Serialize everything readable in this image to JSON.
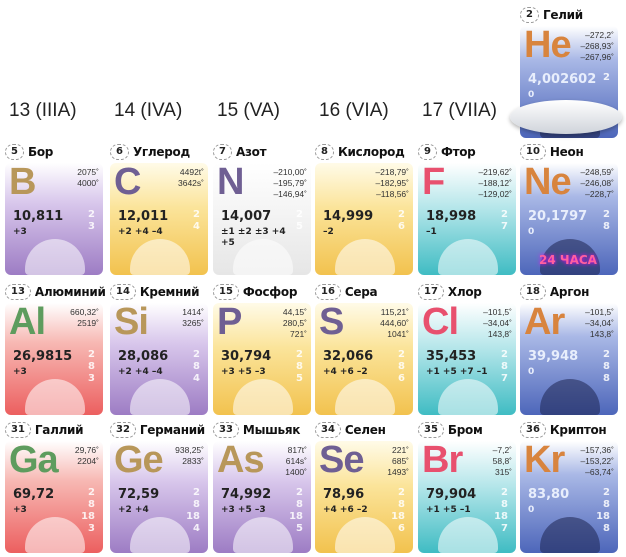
{
  "groups": [
    "13 (IIIA)",
    "14 (IVA)",
    "15 (VA)",
    "16 (VIA)",
    "17 (VIIA)"
  ],
  "colors": {
    "purple_bg": "#a585c9",
    "yellow_bg": "#f6d36a",
    "white_bg": "#dcdcdc",
    "teal_bg": "#4fc3c8",
    "blue_bg": "#5a74c4",
    "red_bg": "#ee6a6a",
    "sym_tan": "#b8975a",
    "sym_purple": "#6f5f93",
    "sym_pink": "#e8506e",
    "sym_orange": "#d8843e",
    "sym_green": "#5e9c5e"
  },
  "elements": [
    {
      "number": "2",
      "name": "Гелий",
      "symbol": "He",
      "temps": [
        "–272,2˚",
        "–268,93˚",
        "–267,96˚"
      ],
      "mass": "4,002602",
      "ox": "0",
      "shells": [
        "2"
      ],
      "bg": "blue",
      "sym": "orange",
      "image": "airship"
    },
    {
      "number": "5",
      "name": "Бор",
      "symbol": "B",
      "temps": [
        "2075˚",
        "4000˚"
      ],
      "mass": "10,811",
      "ox": "+3",
      "shells": [
        "2",
        "3"
      ],
      "bg": "purple",
      "sym": "tan",
      "image": "dental-drill"
    },
    {
      "number": "6",
      "name": "Углерод",
      "symbol": "C",
      "temps": [
        "4492t˚",
        "3642s˚"
      ],
      "mass": "12,011",
      "ox": "+2 +4 –4",
      "shells": [
        "2",
        "4"
      ],
      "bg": "yellow",
      "sym": "purple",
      "image": "diamond"
    },
    {
      "number": "7",
      "name": "Азот",
      "symbol": "N",
      "temps": [
        "–210,00˚",
        "–195,79˚",
        "–146,94˚"
      ],
      "mass": "14,007",
      "ox": "±1 ±2 ±3 +4 +5",
      "shells": [
        "2",
        "5"
      ],
      "bg": "white",
      "sym": "purple",
      "image": "pellets"
    },
    {
      "number": "8",
      "name": "Кислород",
      "symbol": "",
      "temps": [
        "–218,79˚",
        "–182,95˚",
        "–118,56˚"
      ],
      "mass": "14,999",
      "ox": "–2",
      "shells": [
        "2",
        "6"
      ],
      "bg": "yellow",
      "sym": "purple",
      "image": "lighter"
    },
    {
      "number": "9",
      "name": "Фтор",
      "symbol": "F",
      "temps": [
        "–219,62˚",
        "–188,12˚",
        "–129,02˚"
      ],
      "mass": "18,998",
      "ox": "–1",
      "shells": [
        "2",
        "7"
      ],
      "bg": "teal",
      "sym": "pink",
      "image": "toothpaste"
    },
    {
      "number": "10",
      "name": "Неон",
      "symbol": "Ne",
      "temps": [
        "–248,59˚",
        "–246,08˚",
        "–228,7˚"
      ],
      "mass": "20,1797",
      "ox": "0",
      "shells": [
        "2",
        "8"
      ],
      "bg": "blue",
      "sym": "orange",
      "image": "neon-sign",
      "sign": "24 ЧАСА"
    },
    {
      "number": "13",
      "name": "Алюминий",
      "symbol": "Al",
      "temps": [
        "660,32˚",
        "2519˚"
      ],
      "mass": "26,9815",
      "ox": "+3",
      "shells": [
        "2",
        "8",
        "3"
      ],
      "bg": "red",
      "sym": "green",
      "image": "airplane"
    },
    {
      "number": "14",
      "name": "Кремний",
      "symbol": "Si",
      "temps": [
        "1414˚",
        "3265˚"
      ],
      "mass": "28,086",
      "ox": "+2 +4 –4",
      "shells": [
        "2",
        "8",
        "4"
      ],
      "bg": "purple",
      "sym": "tan",
      "image": "circuit"
    },
    {
      "number": "15",
      "name": "Фосфор",
      "symbol": "P",
      "temps": [
        "44,15˚",
        "280,5˚",
        "721˚"
      ],
      "mass": "30,794",
      "ox": "+3 +5 –3",
      "shells": [
        "2",
        "8",
        "5"
      ],
      "bg": "yellow",
      "sym": "purple",
      "image": "matchbox"
    },
    {
      "number": "16",
      "name": "Сера",
      "symbol": "S",
      "temps": [
        "115,21˚",
        "444,60˚",
        "1041˚"
      ],
      "mass": "32,066",
      "ox": "+4 +6 –2",
      "shells": [
        "2",
        "8",
        "6"
      ],
      "bg": "yellow",
      "sym": "purple",
      "image": "sulfur-crystals"
    },
    {
      "number": "17",
      "name": "Хлор",
      "symbol": "Cl",
      "temps": [
        "–101,5˚",
        "–34,04˚",
        "143,8˚"
      ],
      "mass": "35,453",
      "ox": "+1 +5 +7 –1",
      "shells": [
        "2",
        "8",
        "7"
      ],
      "bg": "teal",
      "sym": "pink",
      "image": "rubber-boot"
    },
    {
      "number": "18",
      "name": "Аргон",
      "symbol": "Ar",
      "temps": [
        "–101,5˚",
        "–34,04˚",
        "143,8˚"
      ],
      "mass": "39,948",
      "ox": "0",
      "shells": [
        "2",
        "8",
        "8"
      ],
      "bg": "blue",
      "sym": "orange",
      "image": "welder"
    },
    {
      "number": "31",
      "name": "Галлий",
      "symbol": "Ga",
      "temps": [
        "29,76˚",
        "2204˚"
      ],
      "mass": "69,72",
      "ox": "+3",
      "shells": [
        "2",
        "8",
        "18",
        "3"
      ],
      "bg": "red",
      "sym": "green",
      "image": "led-chip"
    },
    {
      "number": "32",
      "name": "Германий",
      "symbol": "Ge",
      "temps": [
        "938,25˚",
        "2833˚"
      ],
      "mass": "72,59",
      "ox": "+2 +4",
      "shells": [
        "2",
        "8",
        "18",
        "4"
      ],
      "bg": "purple",
      "sym": "tan",
      "image": "diode"
    },
    {
      "number": "33",
      "name": "Мышьяк",
      "symbol": "As",
      "temps": [
        "817t˚",
        "614s˚",
        "1400˚"
      ],
      "mass": "74,992",
      "ox": "+3 +5 –3",
      "shells": [
        "2",
        "8",
        "18",
        "5"
      ],
      "bg": "purple",
      "sym": "tan",
      "image": "skull"
    },
    {
      "number": "34",
      "name": "Селен",
      "symbol": "Se",
      "temps": [
        "221˚",
        "685˚",
        "1493˚"
      ],
      "mass": "78,96",
      "ox": "+4 +6 –2",
      "shells": [
        "2",
        "8",
        "18",
        "6"
      ],
      "bg": "yellow",
      "sym": "purple",
      "image": "photocell"
    },
    {
      "number": "35",
      "name": "Бром",
      "symbol": "Br",
      "temps": [
        "–7,2˚",
        "58,8˚",
        "315˚"
      ],
      "mass": "79,904",
      "ox": "+1 +5 –1",
      "shells": [
        "2",
        "8",
        "18",
        "7"
      ],
      "bg": "teal",
      "sym": "pink",
      "image": "mushrooms"
    },
    {
      "number": "36",
      "name": "Криптон",
      "symbol": "Kr",
      "temps": [
        "–157,36˚",
        "–153,22˚",
        "–63,74˚"
      ],
      "mass": "83,80",
      "ox": "0",
      "shells": [
        "2",
        "8",
        "18",
        "8"
      ],
      "bg": "blue",
      "sym": "orange",
      "image": "flashlight"
    }
  ]
}
